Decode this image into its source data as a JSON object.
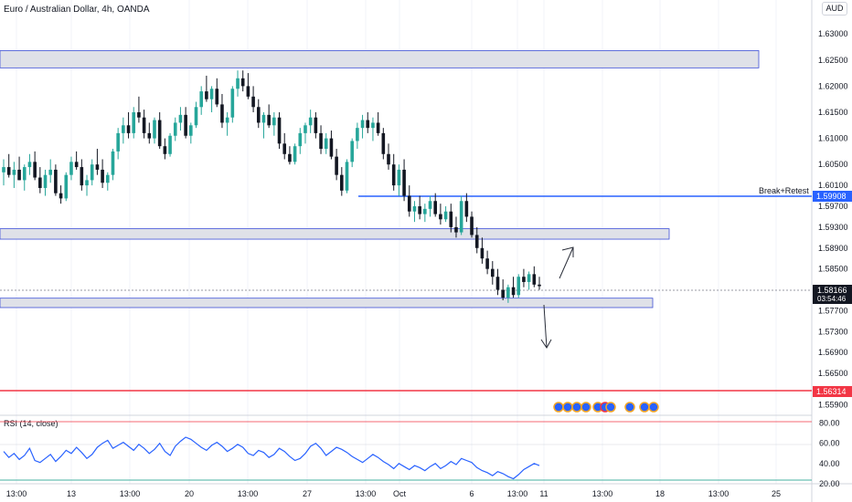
{
  "header": {
    "title": "Euro / Australian Dollar, 4h, OANDA",
    "currency": "AUD"
  },
  "price_axis": {
    "ticks": [
      "1.63000",
      "1.62500",
      "1.62000",
      "1.61500",
      "1.61000",
      "1.60500",
      "1.60100",
      "1.59700",
      "1.59300",
      "1.58900",
      "1.58500",
      "1.57700",
      "1.57300",
      "1.56900",
      "1.56500",
      "1.56200",
      "1.55900"
    ],
    "tick_values": [
      1.63,
      1.625,
      1.62,
      1.615,
      1.61,
      1.605,
      1.601,
      1.597,
      1.593,
      1.589,
      1.585,
      1.577,
      1.573,
      1.569,
      1.565,
      1.562,
      1.559
    ],
    "current_price": "1.58166",
    "countdown": "03:54:46",
    "line_label_blue": "1.59908",
    "line_label_red": "1.56314"
  },
  "time_axis": {
    "ticks": [
      "13:00",
      "13",
      "13:00",
      "20",
      "13:00",
      "27",
      "13:00",
      "Oct",
      "6",
      "13:00",
      "11",
      "13:00",
      "18",
      "13:00",
      "25"
    ]
  },
  "annotations": {
    "break_retest": "Break+Retest"
  },
  "rsi": {
    "label": "RSI (14, close)",
    "ticks": [
      "80.00",
      "60.00",
      "40.00",
      "20.00"
    ],
    "tick_values": [
      80,
      60,
      40,
      20
    ]
  },
  "colors": {
    "up": "#26a69a",
    "down": "#131722",
    "blue_line": "#2962ff",
    "red_line": "#f23645",
    "zone_fill": "#dfe1e8",
    "zone_border": "#3f51d6",
    "rsi_line": "#2962ff",
    "arrow": "#2a2e39"
  },
  "chart_data": {
    "type": "candlestick",
    "symbol": "Euro / Australian Dollar",
    "timeframe": "4h",
    "ylim": [
      1.5575,
      1.633
    ],
    "ohlc": [
      [
        1.6035,
        1.606,
        1.601,
        1.6045
      ],
      [
        1.6045,
        1.607,
        1.6025,
        1.603
      ],
      [
        1.603,
        1.6055,
        1.6005,
        1.604
      ],
      [
        1.604,
        1.6065,
        1.602,
        1.602
      ],
      [
        1.602,
        1.605,
        1.6,
        1.6045
      ],
      [
        1.6045,
        1.607,
        1.603,
        1.6055
      ],
      [
        1.6055,
        1.6075,
        1.602,
        1.6025
      ],
      [
        1.6025,
        1.6045,
        1.5995,
        1.6005
      ],
      [
        1.6005,
        1.604,
        1.599,
        1.603
      ],
      [
        1.603,
        1.606,
        1.6015,
        1.604
      ],
      [
        1.604,
        1.605,
        1.599,
        1.5995
      ],
      [
        1.5995,
        1.601,
        1.5975,
        1.5985
      ],
      [
        1.5985,
        1.6035,
        1.598,
        1.603
      ],
      [
        1.603,
        1.6065,
        1.602,
        1.6055
      ],
      [
        1.6055,
        1.6075,
        1.604,
        1.6045
      ],
      [
        1.6045,
        1.606,
        1.6,
        1.601
      ],
      [
        1.601,
        1.603,
        1.599,
        1.602
      ],
      [
        1.602,
        1.606,
        1.601,
        1.605
      ],
      [
        1.605,
        1.608,
        1.603,
        1.604
      ],
      [
        1.604,
        1.606,
        1.6005,
        1.6015
      ],
      [
        1.6015,
        1.6035,
        1.6,
        1.603
      ],
      [
        1.603,
        1.608,
        1.602,
        1.6075
      ],
      [
        1.6075,
        1.612,
        1.606,
        1.611
      ],
      [
        1.611,
        1.614,
        1.609,
        1.6125
      ],
      [
        1.6125,
        1.615,
        1.61,
        1.611
      ],
      [
        1.611,
        1.616,
        1.61,
        1.615
      ],
      [
        1.615,
        1.618,
        1.613,
        1.614
      ],
      [
        1.614,
        1.6155,
        1.61,
        1.611
      ],
      [
        1.611,
        1.613,
        1.609,
        1.61
      ],
      [
        1.61,
        1.614,
        1.609,
        1.6135
      ],
      [
        1.6135,
        1.615,
        1.608,
        1.6085
      ],
      [
        1.6085,
        1.61,
        1.606,
        1.607
      ],
      [
        1.607,
        1.611,
        1.6065,
        1.6105
      ],
      [
        1.6105,
        1.614,
        1.6095,
        1.613
      ],
      [
        1.613,
        1.616,
        1.6115,
        1.6145
      ],
      [
        1.6145,
        1.616,
        1.61,
        1.6105
      ],
      [
        1.6105,
        1.613,
        1.609,
        1.6125
      ],
      [
        1.6125,
        1.617,
        1.612,
        1.616
      ],
      [
        1.616,
        1.62,
        1.6145,
        1.619
      ],
      [
        1.619,
        1.622,
        1.617,
        1.6175
      ],
      [
        1.6175,
        1.62,
        1.615,
        1.6195
      ],
      [
        1.6195,
        1.6215,
        1.616,
        1.6165
      ],
      [
        1.6165,
        1.6185,
        1.612,
        1.613
      ],
      [
        1.613,
        1.615,
        1.6105,
        1.614
      ],
      [
        1.614,
        1.62,
        1.613,
        1.6195
      ],
      [
        1.6195,
        1.623,
        1.618,
        1.6215
      ],
      [
        1.6215,
        1.623,
        1.619,
        1.62
      ],
      [
        1.62,
        1.6225,
        1.6175,
        1.618
      ],
      [
        1.618,
        1.62,
        1.615,
        1.616
      ],
      [
        1.616,
        1.6175,
        1.612,
        1.613
      ],
      [
        1.613,
        1.615,
        1.61,
        1.6145
      ],
      [
        1.6145,
        1.6165,
        1.612,
        1.6125
      ],
      [
        1.6125,
        1.615,
        1.6105,
        1.614
      ],
      [
        1.614,
        1.615,
        1.608,
        1.609
      ],
      [
        1.609,
        1.611,
        1.606,
        1.607
      ],
      [
        1.607,
        1.6085,
        1.605,
        1.6055
      ],
      [
        1.6055,
        1.609,
        1.605,
        1.6085
      ],
      [
        1.6085,
        1.612,
        1.607,
        1.611
      ],
      [
        1.611,
        1.613,
        1.609,
        1.6125
      ],
      [
        1.6125,
        1.6155,
        1.611,
        1.614
      ],
      [
        1.614,
        1.615,
        1.61,
        1.611
      ],
      [
        1.611,
        1.6125,
        1.607,
        1.608
      ],
      [
        1.608,
        1.611,
        1.607,
        1.61
      ],
      [
        1.61,
        1.6115,
        1.606,
        1.6065
      ],
      [
        1.6065,
        1.608,
        1.602,
        1.603
      ],
      [
        1.603,
        1.6045,
        1.599,
        1.6
      ],
      [
        1.6,
        1.606,
        1.5995,
        1.6055
      ],
      [
        1.6055,
        1.61,
        1.6045,
        1.6095
      ],
      [
        1.6095,
        1.613,
        1.608,
        1.612
      ],
      [
        1.612,
        1.6145,
        1.61,
        1.6135
      ],
      [
        1.6135,
        1.615,
        1.611,
        1.612
      ],
      [
        1.612,
        1.614,
        1.6095,
        1.613
      ],
      [
        1.613,
        1.615,
        1.6105,
        1.611
      ],
      [
        1.611,
        1.612,
        1.606,
        1.607
      ],
      [
        1.607,
        1.609,
        1.604,
        1.605
      ],
      [
        1.605,
        1.607,
        1.6,
        1.601
      ],
      [
        1.601,
        1.605,
        1.599,
        1.604
      ],
      [
        1.604,
        1.606,
        1.598,
        1.599
      ],
      [
        1.599,
        1.601,
        1.595,
        1.596
      ],
      [
        1.596,
        1.598,
        1.594,
        1.597
      ],
      [
        1.597,
        1.599,
        1.5945,
        1.5955
      ],
      [
        1.5955,
        1.5975,
        1.594,
        1.5965
      ],
      [
        1.5965,
        1.599,
        1.595,
        1.598
      ],
      [
        1.598,
        1.5995,
        1.595,
        1.5955
      ],
      [
        1.5955,
        1.5975,
        1.5935,
        1.5945
      ],
      [
        1.5945,
        1.597,
        1.594,
        1.596
      ],
      [
        1.596,
        1.5975,
        1.592,
        1.593
      ],
      [
        1.593,
        1.595,
        1.591,
        1.592
      ],
      [
        1.592,
        1.599,
        1.5915,
        1.598
      ],
      [
        1.598,
        1.5995,
        1.594,
        1.595
      ],
      [
        1.595,
        1.596,
        1.591,
        1.5915
      ],
      [
        1.5915,
        1.593,
        1.588,
        1.589
      ],
      [
        1.589,
        1.591,
        1.586,
        1.587
      ],
      [
        1.587,
        1.5885,
        1.584,
        1.585
      ],
      [
        1.585,
        1.5865,
        1.582,
        1.5835
      ],
      [
        1.5835,
        1.585,
        1.58,
        1.581
      ],
      [
        1.581,
        1.583,
        1.579,
        1.5795
      ],
      [
        1.5795,
        1.582,
        1.5785,
        1.5815
      ],
      [
        1.5815,
        1.5835,
        1.5795,
        1.58
      ],
      [
        1.58,
        1.584,
        1.5795,
        1.5835
      ],
      [
        1.5835,
        1.585,
        1.5815,
        1.5825
      ],
      [
        1.5825,
        1.5845,
        1.581,
        1.584
      ],
      [
        1.584,
        1.5855,
        1.5815,
        1.582
      ],
      [
        1.582,
        1.5835,
        1.581,
        1.5817
      ]
    ],
    "horizontal_lines": [
      {
        "price": 1.59908,
        "label": "1.59908"
      },
      {
        "price": 1.56314,
        "label": "1.56314"
      }
    ],
    "zones": [
      {
        "top": 1.6268,
        "bottom": 1.6235
      },
      {
        "top": 1.5927,
        "bottom": 1.5907
      },
      {
        "top": 1.5794,
        "bottom": 1.5776
      }
    ],
    "rsi_values": [
      52,
      46,
      50,
      44,
      48,
      55,
      43,
      41,
      45,
      49,
      42,
      47,
      53,
      50,
      56,
      51,
      45,
      49,
      56,
      60,
      63,
      55,
      58,
      61,
      57,
      53,
      59,
      55,
      50,
      54,
      60,
      52,
      48,
      57,
      62,
      66,
      64,
      60,
      56,
      53,
      58,
      61,
      57,
      52,
      55,
      59,
      56,
      50,
      48,
      53,
      51,
      46,
      49,
      55,
      52,
      47,
      43,
      45,
      50,
      57,
      60,
      55,
      48,
      52,
      56,
      54,
      51,
      47,
      44,
      41,
      45,
      49,
      46,
      42,
      39,
      35,
      40,
      37,
      34,
      38,
      36,
      33,
      37,
      40,
      35,
      38,
      42,
      39,
      45,
      43,
      41,
      36,
      33,
      31,
      28,
      32,
      30,
      27,
      25,
      29,
      34,
      37,
      40,
      38
    ]
  }
}
